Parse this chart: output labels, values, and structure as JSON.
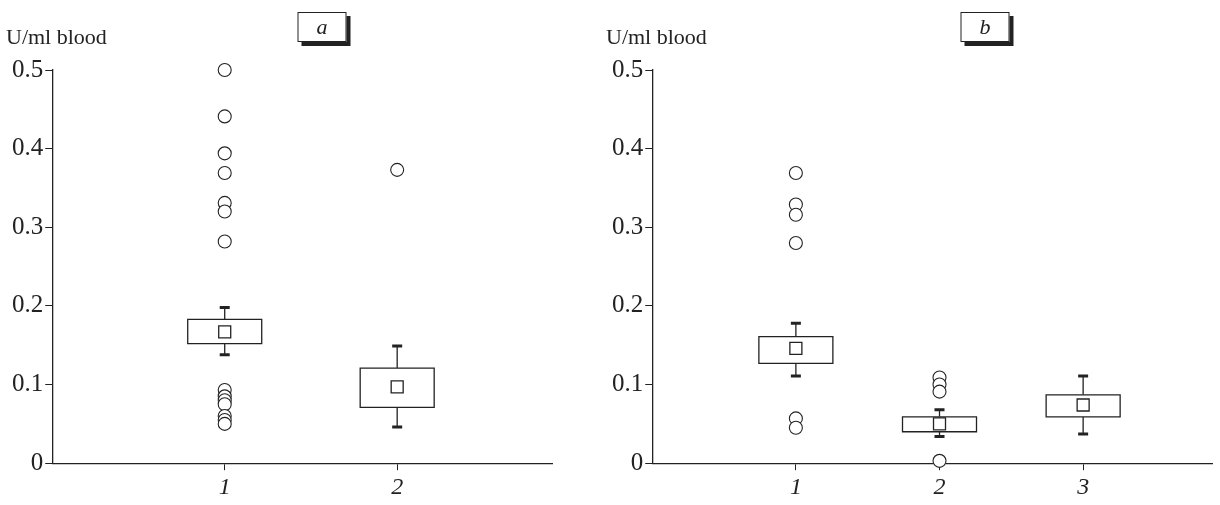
{
  "chart_data": [
    {
      "type": "box",
      "title": "a",
      "ylabel": "U/ml blood",
      "categories": [
        "1",
        "2"
      ],
      "ylim": [
        0,
        0.5
      ],
      "yticks": [
        0,
        0.1,
        0.2,
        0.3,
        0.4,
        0.5
      ],
      "boxes": [
        {
          "low": 0.138,
          "q1": 0.152,
          "median": 0.167,
          "q3": 0.183,
          "high": 0.198,
          "outliers": [
            0.5,
            0.441,
            0.394,
            0.369,
            0.331,
            0.32,
            0.282,
            0.093,
            0.085,
            0.08,
            0.075,
            0.06,
            0.055,
            0.05
          ]
        },
        {
          "low": 0.046,
          "q1": 0.071,
          "median": 0.097,
          "q3": 0.121,
          "high": 0.149,
          "outliers": [
            0.373
          ]
        }
      ]
    },
    {
      "type": "box",
      "title": "b",
      "ylabel": "U/ml blood",
      "categories": [
        "1",
        "2",
        "3"
      ],
      "ylim": [
        0,
        0.5
      ],
      "yticks": [
        0,
        0.1,
        0.2,
        0.3,
        0.4,
        0.5
      ],
      "boxes": [
        {
          "low": 0.111,
          "q1": 0.127,
          "median": 0.146,
          "q3": 0.161,
          "high": 0.178,
          "outliers": [
            0.369,
            0.329,
            0.316,
            0.28,
            0.057,
            0.045
          ]
        },
        {
          "low": 0.034,
          "q1": 0.04,
          "median": 0.05,
          "q3": 0.059,
          "high": 0.068,
          "outliers": [
            0.109,
            0.1,
            0.091,
            0.003
          ]
        },
        {
          "low": 0.037,
          "q1": 0.059,
          "median": 0.074,
          "q3": 0.087,
          "high": 0.111
        }
      ]
    }
  ]
}
